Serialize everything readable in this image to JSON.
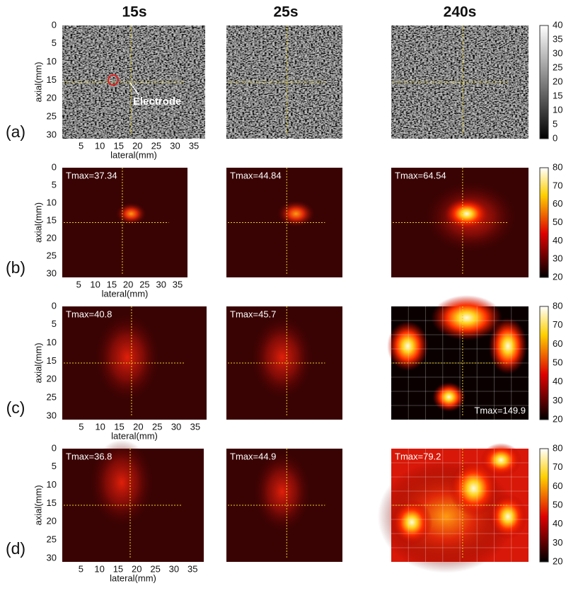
{
  "columns": [
    "15s",
    "25s",
    "240s"
  ],
  "axes": {
    "y_label": "axial(mm)",
    "x_label": "lateral(mm)",
    "y_ticks": [
      0,
      5,
      10,
      15,
      20,
      25,
      30
    ],
    "x_ticks": [
      5,
      10,
      15,
      20,
      25,
      30,
      35
    ]
  },
  "rows": [
    {
      "label": "(a)",
      "annotation": "Electrode",
      "colorbar_ticks": [
        0,
        5,
        10,
        15,
        20,
        25,
        30,
        35,
        40
      ]
    },
    {
      "label": "(b)",
      "tmax": [
        "Tmax=37.34",
        "Tmax=44.84",
        "Tmax=64.54"
      ],
      "colorbar_ticks": [
        20,
        30,
        40,
        50,
        60,
        70,
        80
      ]
    },
    {
      "label": "(c)",
      "tmax": [
        "Tmax=40.8",
        "Tmax=45.7",
        "Tmax=149.9"
      ],
      "colorbar_ticks": [
        20,
        30,
        40,
        50,
        60,
        70,
        80
      ]
    },
    {
      "label": "(d)",
      "tmax": [
        "Tmax=36.8",
        "Tmax=44.9",
        "Tmax=79.2"
      ],
      "colorbar_ticks": [
        20,
        30,
        40,
        50,
        60,
        70,
        80
      ]
    }
  ]
}
